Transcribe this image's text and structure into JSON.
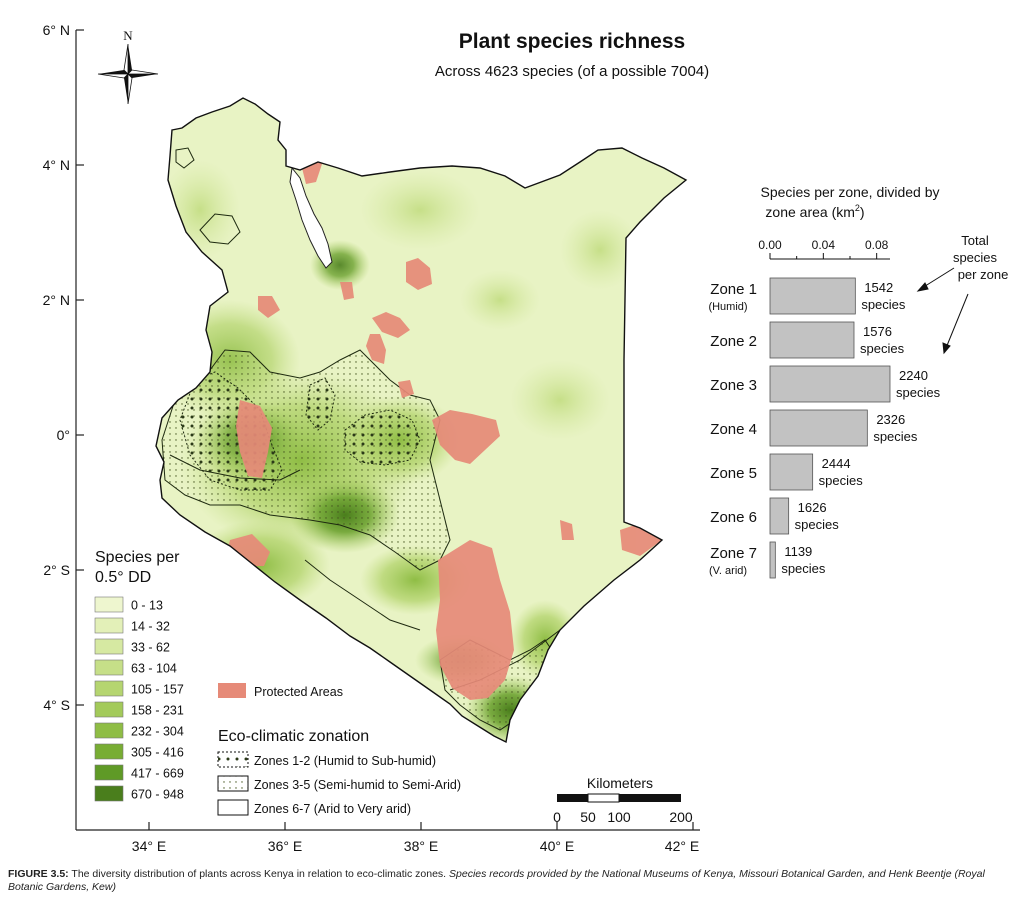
{
  "map": {
    "title": "Plant species richness",
    "subtitle": "Across 4623 species (of a possible 7004)",
    "north_label": "N",
    "lat_labels": [
      "6° N",
      "4° N",
      "2° N",
      "0°",
      "2° S",
      "4° S"
    ],
    "lon_labels": [
      "34° E",
      "36° E",
      "38° E",
      "40° E",
      "42° E"
    ],
    "scale": {
      "title": "Kilometers",
      "ticks": [
        "0",
        "50",
        "100",
        "200"
      ]
    }
  },
  "legend": {
    "title_line1": "Species per",
    "title_line2": "0.5° DD",
    "classes": [
      {
        "label": "0 - 13",
        "color": "#eef6cf"
      },
      {
        "label": "14 - 32",
        "color": "#e3f0b8"
      },
      {
        "label": "33 - 62",
        "color": "#d6e9a2"
      },
      {
        "label": "63 - 104",
        "color": "#c6df88"
      },
      {
        "label": "105 - 157",
        "color": "#b5d570"
      },
      {
        "label": "158 - 231",
        "color": "#a3ca5a"
      },
      {
        "label": "232 - 304",
        "color": "#8fbd45"
      },
      {
        "label": "305 - 416",
        "color": "#78ad33"
      },
      {
        "label": "417 - 669",
        "color": "#5f9a26"
      },
      {
        "label": "670 - 948",
        "color": "#4a7e1c"
      }
    ],
    "protected_label": "Protected Areas",
    "protected_color": "#e68a78",
    "zonation_title": "Eco-climatic zonation",
    "zones": [
      {
        "label": "Zones 1-2 (Humid to Sub-humid)"
      },
      {
        "label": "Zones 3-5 (Semi-humid to Semi-Arid)"
      },
      {
        "label": "Zones 6-7 (Arid to Very arid)"
      }
    ]
  },
  "inset": {
    "title_line1": "Species per zone, divided by",
    "title_line2": "zone area (km",
    "title_sup": "2",
    "title_close": ")",
    "axis_ticks": [
      "0.00",
      "0.04",
      "0.08"
    ],
    "annotation_line1": "Total",
    "annotation_line2": "species",
    "annotation_line3": "per zone",
    "bar_color": "#c2c2c2"
  },
  "chart_data": {
    "type": "bar",
    "orientation": "horizontal",
    "title": "Species per zone, divided by zone area (km2)",
    "categories": [
      "Zone 1",
      "Zone 2",
      "Zone 3",
      "Zone 4",
      "Zone 5",
      "Zone 6",
      "Zone 7"
    ],
    "category_sublabels": [
      "(Humid)",
      "",
      "",
      "",
      "",
      "",
      "(V. arid)"
    ],
    "values": [
      0.064,
      0.063,
      0.09,
      0.073,
      0.032,
      0.014,
      0.004
    ],
    "bar_labels": [
      [
        "1542",
        "species"
      ],
      [
        "1576",
        "species"
      ],
      [
        "2240",
        "species"
      ],
      [
        "2326",
        "species"
      ],
      [
        "2444",
        "species"
      ],
      [
        "1626",
        "species"
      ],
      [
        "1139",
        "species"
      ]
    ],
    "xlim": [
      0,
      0.09
    ],
    "xticks": [
      0.0,
      0.04,
      0.08
    ]
  },
  "caption": {
    "label": "FIGURE 3.5:",
    "text": " The diversity distribution of plants across Kenya in relation to eco-climatic zones. ",
    "source": "Species records provided by the National Museums of Kenya, Missouri Botanical Garden, and Henk Beentje (Royal Botanic Gardens, Kew)"
  }
}
